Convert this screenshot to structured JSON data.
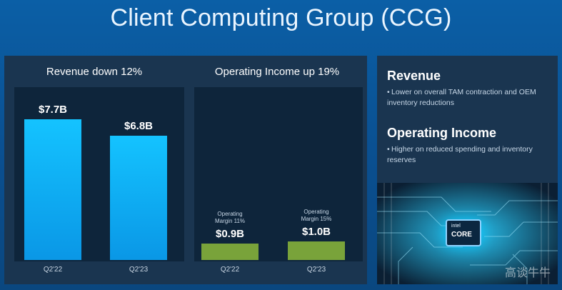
{
  "page": {
    "title": "Client Computing Group (CCG)"
  },
  "chart_data": [
    {
      "type": "bar",
      "title": "Revenue down 12%",
      "categories": [
        "Q2'22",
        "Q2'23"
      ],
      "values": [
        7.7,
        6.8
      ],
      "value_labels": [
        "$7.7B",
        "$6.8B"
      ],
      "ylim": [
        0,
        9.0
      ],
      "color": "#14c3ff"
    },
    {
      "type": "bar",
      "title": "Operating Income up 19%",
      "categories": [
        "Q2'22",
        "Q2'23"
      ],
      "values": [
        0.9,
        1.0
      ],
      "value_labels": [
        "$0.9B",
        "$1.0B"
      ],
      "annotations": [
        "Operating\nMargin 11%",
        "Operating\nMargin 15%"
      ],
      "ylim": [
        0,
        9.0
      ],
      "color": "#79a33a"
    }
  ],
  "right_panel": {
    "sections": [
      {
        "heading": "Revenue",
        "bullets": [
          "Lower on overall TAM contraction and OEM inventory reductions"
        ]
      },
      {
        "heading": "Operating Income",
        "bullets": [
          "Higher on reduced spending and inventory reserves"
        ]
      }
    ],
    "image": {
      "chip_brand": "intel",
      "chip_label": "CORE",
      "watermark": "高谈牛牛",
      "colors": {
        "glow": "#8fd3ff",
        "background": "#0b1f33"
      }
    }
  },
  "colors": {
    "background": "#0b5fa6",
    "panel": "#1a3550",
    "plot": "#0e253b",
    "revenue_bar": "#14c3ff",
    "operating_bar": "#79a33a"
  }
}
